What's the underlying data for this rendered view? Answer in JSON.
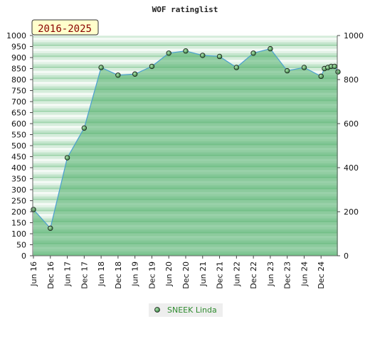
{
  "chart_data": {
    "type": "area",
    "title": "WOF ratinglist",
    "period_label": "2016-2025",
    "xlabel": "",
    "ylabel": "",
    "left_axis": {
      "ylim": [
        0,
        1000
      ],
      "ticks": [
        0,
        50,
        100,
        150,
        200,
        250,
        300,
        350,
        400,
        450,
        500,
        550,
        600,
        650,
        700,
        750,
        800,
        850,
        900,
        950,
        1000
      ]
    },
    "right_axis": {
      "ylim": [
        0,
        1000
      ],
      "ticks": [
        0,
        200,
        400,
        600,
        800,
        1000
      ]
    },
    "x_tick_labels": [
      "Jun 16",
      "Dec 16",
      "Jun 17",
      "Dec 17",
      "Jun 18",
      "Dec 18",
      "Jun 19",
      "Dec 19",
      "Jun 20",
      "Dec 20",
      "Jun 21",
      "Dec 21",
      "Jun 22",
      "Dec 22",
      "Jun 23",
      "Dec 23",
      "Jun 24",
      "Dec 24"
    ],
    "legend_position": "bottom-center",
    "grid": true,
    "series": [
      {
        "name": "SNEEK Linda",
        "color": "#5aa86a",
        "x": [
          0,
          1,
          2,
          3,
          4,
          5,
          6,
          7,
          8,
          9,
          10,
          11,
          12,
          13,
          14,
          15,
          16,
          17,
          17.2,
          17.4,
          17.6,
          17.8,
          18
        ],
        "values": [
          210,
          125,
          445,
          580,
          855,
          820,
          825,
          860,
          920,
          930,
          910,
          905,
          855,
          920,
          940,
          840,
          855,
          815,
          850,
          855,
          860,
          860,
          835
        ]
      }
    ]
  }
}
